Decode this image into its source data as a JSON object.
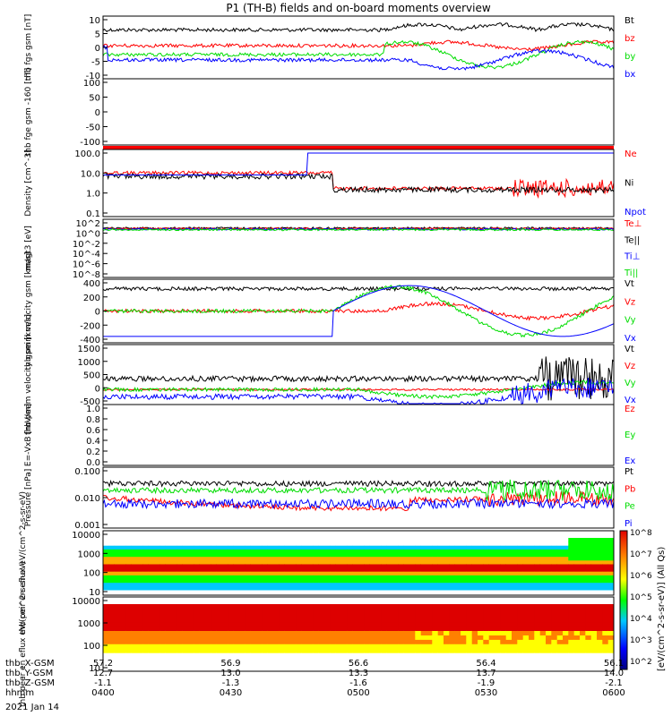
{
  "title": "P1 (TH-B) fields and on-board moments overview",
  "date_label": "2021 Jan 14",
  "colorbar": {
    "ticks": [
      "10^8",
      "10^7",
      "10^6",
      "10^5",
      "10^4",
      "10^3",
      "10^2"
    ],
    "label": "[eV/(cm^2-s-sr-eV)] (All Qs)"
  },
  "ephemeris": {
    "rows": [
      {
        "name": "thb_X-GSM",
        "values": [
          "57.2",
          "56.9",
          "56.6",
          "56.4",
          "56.1"
        ]
      },
      {
        "name": "thb_Y-GSM",
        "values": [
          "12.7",
          "13.0",
          "13.3",
          "13.7",
          "14.0"
        ]
      },
      {
        "name": "thb_Z-GSM",
        "values": [
          "-1.1",
          "-1.3",
          "-1.6",
          "-1.9",
          "-2.1"
        ]
      },
      {
        "name": "hhmm",
        "values": [
          "0400",
          "0430",
          "0500",
          "0530",
          "0600"
        ]
      }
    ]
  },
  "colors": {
    "black": "#000000",
    "red": "#ff0000",
    "green": "#00dd00",
    "blue": "#0000ff"
  },
  "chart_data": [
    {
      "type": "line",
      "ylabel": "thb fgs gsm [nT]",
      "ylim": [
        -10,
        10
      ],
      "yticks": [
        "10",
        "5",
        "0",
        "-5",
        "-10"
      ],
      "series": [
        {
          "name": "Bt",
          "color": "black"
        },
        {
          "name": "bz",
          "color": "red"
        },
        {
          "name": "by",
          "color": "green"
        },
        {
          "name": "bx",
          "color": "blue"
        }
      ]
    },
    {
      "type": "line",
      "ylabel": "thb fge gsm -160 [nT]",
      "ylim": [
        -130,
        110
      ],
      "yticks": [
        "100",
        "50",
        "0",
        "-50",
        "-100"
      ],
      "series": []
    },
    {
      "type": "line",
      "ylabel": "Density [cm^-3]",
      "scale": "log",
      "ylim": [
        0.1,
        100
      ],
      "yticks": [
        "100.0",
        "10.0",
        "1.0",
        "0.1"
      ],
      "series": [
        {
          "name": "Ne",
          "color": "red"
        },
        {
          "name": "Ni",
          "color": "black"
        },
        {
          "name": "Npot",
          "color": "blue"
        }
      ]
    },
    {
      "type": "line",
      "ylabel": "magt3 [eV]",
      "scale": "log",
      "yticks": [
        "10^2",
        "10^0",
        "10^-2",
        "10^-4",
        "10^-6",
        "10^-8"
      ],
      "series": [
        {
          "name": "Te⊥",
          "color": "red"
        },
        {
          "name": "Te||",
          "color": "black"
        },
        {
          "name": "Ti⊥",
          "color": "blue"
        },
        {
          "name": "Ti||",
          "color": "green"
        }
      ]
    },
    {
      "type": "line",
      "ylabel": "thb peim velocity gsm [km/s]",
      "ylim": [
        -400,
        400
      ],
      "yticks": [
        "400",
        "200",
        "0",
        "-200",
        "-400"
      ],
      "series": [
        {
          "name": "Vt",
          "color": "black"
        },
        {
          "name": "Vz",
          "color": "red"
        },
        {
          "name": "Vy",
          "color": "green"
        },
        {
          "name": "Vx",
          "color": "blue"
        }
      ]
    },
    {
      "type": "line",
      "ylabel": "thb peem velocity gsm [km/s]",
      "ylim": [
        -500,
        1500
      ],
      "yticks": [
        "1500",
        "1000",
        "500",
        "0",
        "-500"
      ],
      "series": [
        {
          "name": "Vt",
          "color": "black"
        },
        {
          "name": "Vz",
          "color": "red"
        },
        {
          "name": "Vy",
          "color": "green"
        },
        {
          "name": "Vx",
          "color": "blue"
        }
      ]
    },
    {
      "type": "line",
      "ylabel": "E=-VxB [mV/m]",
      "ylim": [
        0,
        1
      ],
      "yticks": [
        "1.0",
        "0.8",
        "0.6",
        "0.4",
        "0.2",
        "0.0"
      ],
      "series": [
        {
          "name": "Ez",
          "color": "red"
        },
        {
          "name": "Ey",
          "color": "green"
        },
        {
          "name": "Ex",
          "color": "blue"
        }
      ]
    },
    {
      "type": "line",
      "ylabel": "Pressure [nPa]",
      "scale": "log",
      "ylim": [
        0.001,
        0.1
      ],
      "yticks": [
        "0.100",
        "0.010",
        "0.001"
      ],
      "series": [
        {
          "name": "Pt",
          "color": "black"
        },
        {
          "name": "Pb",
          "color": "red"
        },
        {
          "name": "Pe",
          "color": "green"
        },
        {
          "name": "Pi",
          "color": "blue"
        }
      ]
    },
    {
      "type": "heatmap",
      "ylabel": "thb peir en eflux eV/(cm^2-s-sr-eV)",
      "yticks": [
        "10000",
        "1000",
        "100",
        "10"
      ]
    },
    {
      "type": "heatmap",
      "ylabel": "thb peer en eflux eV/(cm^2-s-sr-eV)",
      "yticks": [
        "10000",
        "1000",
        "100",
        "10"
      ]
    }
  ]
}
